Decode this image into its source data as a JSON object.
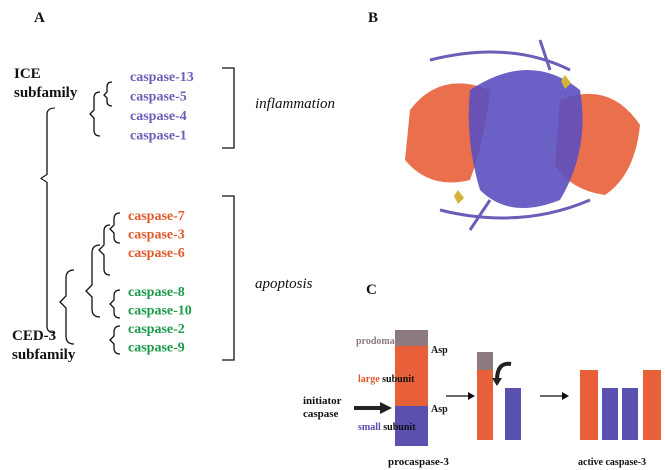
{
  "panel_a": {
    "label": "A",
    "ice_subfamily": [
      "ICE",
      "subfamily"
    ],
    "ced3_subfamily": [
      "CED-3",
      "subfamily"
    ],
    "inflammatory": [
      "caspase-13",
      "caspase-5",
      "caspase-4",
      "caspase-1"
    ],
    "inflammation": "inflammation",
    "apoptotic_orange": [
      "caspase-7",
      "caspase-3",
      "caspase-6"
    ],
    "apoptotic_green": [
      "caspase-8",
      "caspase-10",
      "caspase-2",
      "caspase-9"
    ],
    "apoptosis": "apoptosis"
  },
  "panel_b": {
    "label": "B"
  },
  "panel_c": {
    "label": "C",
    "prodomain": "prodomain",
    "asp_1": "Asp",
    "large": "large",
    "large_subunit": "subunit",
    "asp_2": "Asp",
    "small": "small",
    "small_subunit": "subunit",
    "initiator": [
      "initiator",
      "caspase"
    ],
    "procaspase": "procaspase-3",
    "active": "active caspase-3"
  }
}
